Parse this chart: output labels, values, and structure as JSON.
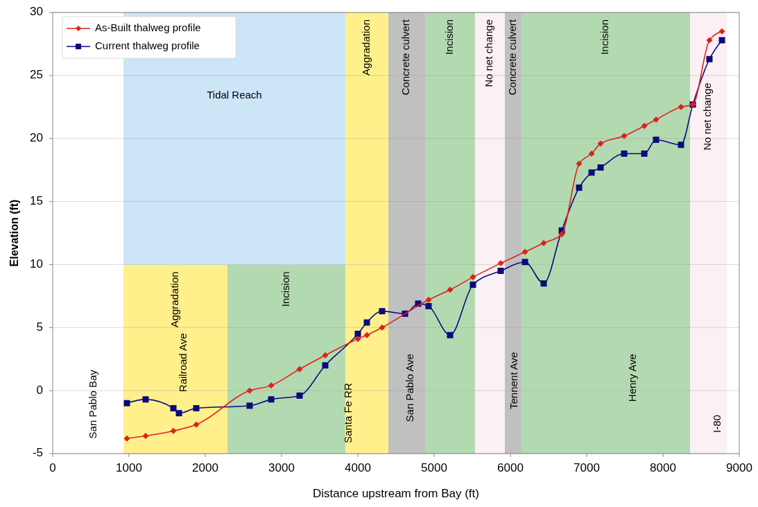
{
  "chart_data": {
    "type": "line",
    "xlabel": "Distance upstream from Bay (ft)",
    "ylabel": "Elevation (ft)",
    "xlim": [
      0,
      9000
    ],
    "xticks": [
      0,
      1000,
      2000,
      3000,
      4000,
      5000,
      6000,
      7000,
      8000,
      9000
    ],
    "ylim": [
      -5,
      30
    ],
    "yticks": [
      -5,
      0,
      5,
      10,
      15,
      20,
      25,
      30
    ],
    "grid": "y",
    "legend": "top left",
    "line_style": "solid",
    "series": [
      {
        "name": "As-Built thalweg profile",
        "color": "#e0201c",
        "marker": "diamond",
        "x": [
          973,
          1218,
          1582,
          1882,
          2582,
          2864,
          3236,
          3573,
          4000,
          4118,
          4318,
          4927,
          5209,
          5509,
          5873,
          6191,
          6436,
          6673,
          6900,
          7064,
          7182,
          7491,
          7755,
          7909,
          8236,
          8391,
          8609,
          8773
        ],
        "values": [
          -3.8,
          -3.6,
          -3.2,
          -2.7,
          0.0,
          0.4,
          1.7,
          2.8,
          4.1,
          4.4,
          5.0,
          7.2,
          8.0,
          9.0,
          10.1,
          11.0,
          11.7,
          12.4,
          18.0,
          18.8,
          19.6,
          20.2,
          21.0,
          21.5,
          22.5,
          22.7,
          27.8,
          28.5
        ]
      },
      {
        "name": "Current thalweg profile",
        "color": "#0a0a7a",
        "marker": "square",
        "x": [
          973,
          1218,
          1582,
          1655,
          1882,
          2582,
          2864,
          3236,
          3573,
          4000,
          4118,
          4318,
          4618,
          4791,
          4927,
          5209,
          5509,
          5873,
          6191,
          6436,
          6673,
          6900,
          7064,
          7182,
          7491,
          7755,
          7909,
          8236,
          8391,
          8609,
          8773
        ],
        "values": [
          -1.0,
          -0.7,
          -1.4,
          -1.8,
          -1.4,
          -1.2,
          -0.7,
          -0.4,
          2.0,
          4.5,
          5.4,
          6.3,
          6.1,
          6.9,
          6.7,
          4.4,
          8.4,
          9.5,
          10.2,
          8.5,
          12.7,
          16.1,
          17.3,
          17.7,
          18.8,
          18.8,
          19.9,
          19.5,
          22.7,
          26.3,
          27.8
        ]
      }
    ],
    "bands": [
      {
        "axis": "x",
        "from": 927,
        "to": 2291,
        "color": "#fff08c",
        "label": "Aggradation"
      },
      {
        "axis": "x",
        "from": 2291,
        "to": 3836,
        "color": "#b3d9b0",
        "label": "Incision"
      },
      {
        "axis": "y",
        "from": 10,
        "to": 30,
        "color": "#cce5f7",
        "label": "Tidal Reach"
      },
      {
        "axis": "x",
        "from": 3836,
        "to": 4400,
        "color": "#fff08c",
        "label": "Aggradation"
      },
      {
        "axis": "x",
        "from": 4400,
        "to": 4882,
        "color": "#c0c0c0",
        "label": "Concrete culvert"
      },
      {
        "axis": "x",
        "from": 4882,
        "to": 5536,
        "color": "#b3d9b0",
        "label": "Incision"
      },
      {
        "axis": "x",
        "from": 5536,
        "to": 5927,
        "color": "#fbf0f4",
        "label": "No net change"
      },
      {
        "axis": "x",
        "from": 5927,
        "to": 6145,
        "color": "#c0c0c0",
        "label": "Concrete culvert"
      },
      {
        "axis": "x",
        "from": 6145,
        "to": 8355,
        "color": "#b3d9b0",
        "label": "Incision"
      },
      {
        "axis": "x",
        "from": 8355,
        "to": 8836,
        "color": "#fbf0f4",
        "label": "No net change"
      }
    ],
    "annotations": [
      "San Pablo Bay",
      "Railroad Ave",
      "Santa Fe RR",
      "San Pablo Ave",
      "Tennent Ave",
      "Henry Ave",
      "I-80"
    ]
  }
}
